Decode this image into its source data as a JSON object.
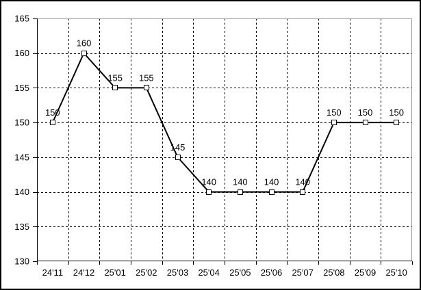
{
  "chart_data": {
    "type": "line",
    "title": "",
    "xlabel": "",
    "ylabel": "",
    "categories": [
      "24'11",
      "24'12",
      "25'01",
      "25'02",
      "25'03",
      "25'04",
      "25'05",
      "25'06",
      "25'07",
      "25'08",
      "25'09",
      "25'10"
    ],
    "series": [
      {
        "name": "",
        "values": [
          150,
          160,
          155,
          155,
          145,
          140,
          140,
          140,
          140,
          150,
          150,
          150
        ],
        "data_labels": [
          "150",
          "160",
          "155",
          "155",
          "145",
          "140",
          "140",
          "140",
          "140",
          "150",
          "150",
          "150"
        ]
      }
    ],
    "ylim": [
      130,
      165
    ],
    "ytick_interval": 5,
    "yticks": [
      "130",
      "135",
      "140",
      "145",
      "150",
      "155",
      "160",
      "165"
    ],
    "grid": "dashed",
    "legend": "none",
    "marker": "hollow-square",
    "colors": {
      "line": "#000000",
      "marker_fill": "#ffffff",
      "marker_stroke": "#000000",
      "grid": "#000000",
      "axis": "#000000",
      "frame_top_right": "#999999",
      "background": "#ffffff",
      "outer_border": "#000000",
      "text": "#000000"
    }
  }
}
